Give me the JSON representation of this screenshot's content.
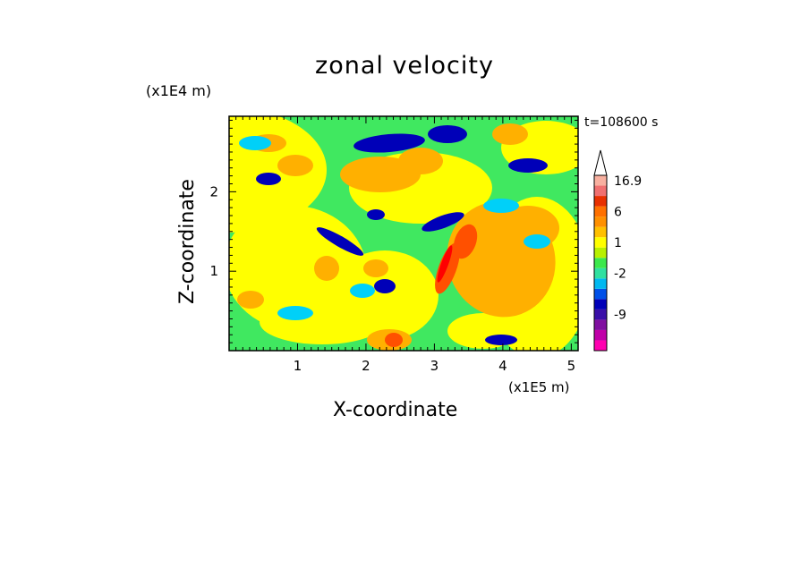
{
  "chart_data": {
    "type": "heatmap",
    "title": "zonal velocity",
    "xlabel": "X-coordinate",
    "ylabel": "Z-coordinate",
    "x_unit": "(x1E5 m)",
    "y_unit": "(x1E4 m)",
    "time_label": "t=108600 s",
    "xlim": [
      0,
      5.1
    ],
    "ylim": [
      0,
      2.95
    ],
    "x_ticks": [
      1,
      2,
      3,
      4,
      5
    ],
    "y_ticks": [
      1,
      2
    ],
    "colorbar": {
      "labels": [
        "16.9",
        "6",
        "1",
        "-2",
        "-9"
      ],
      "levels": [
        {
          "color": "#ff00b0"
        },
        {
          "color": "#c000a8"
        },
        {
          "color": "#8010a0"
        },
        {
          "color": "#3a10a8"
        },
        {
          "color": "#0000b8"
        },
        {
          "color": "#0050e8"
        },
        {
          "color": "#00b8f0"
        },
        {
          "color": "#30e0a0"
        },
        {
          "color": "#3ce84c"
        },
        {
          "color": "#b8f000"
        },
        {
          "color": "#ffff00"
        },
        {
          "color": "#ffc000"
        },
        {
          "color": "#ff9000"
        },
        {
          "color": "#ff7000"
        },
        {
          "color": "#e83000"
        },
        {
          "color": "#f07070"
        },
        {
          "color": "#f8b0a0"
        }
      ]
    },
    "palette": {
      "deep_neg": "#0000b8",
      "neg": "#00d0f8",
      "small": "#40e860",
      "zero": "#ffff00",
      "pos": "#ffb000",
      "strong_pos": "#ff5000",
      "max": "#ff0000"
    }
  }
}
